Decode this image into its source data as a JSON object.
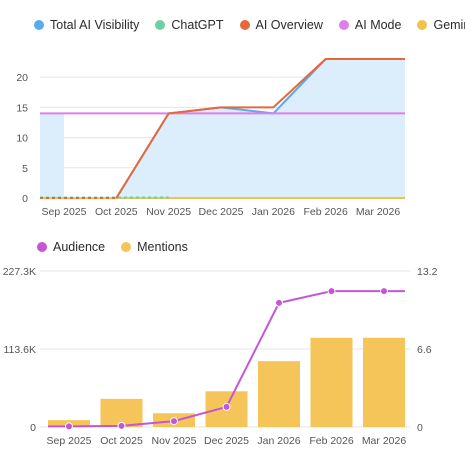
{
  "chart_data": [
    {
      "type": "line",
      "categories": [
        "Sep 2025",
        "Oct 2025",
        "Nov 2025",
        "Dec 2025",
        "Jan 2026",
        "Feb 2026",
        "Mar 2026"
      ],
      "ylim": [
        0,
        23
      ],
      "y_ticks": [
        "0",
        "5",
        "10",
        "15",
        "20"
      ],
      "legend_position": "top",
      "grid": true,
      "series": [
        {
          "name": "Total AI Visibility",
          "color": "#5aaaf0",
          "values": [
            0,
            0,
            14,
            15,
            14,
            23,
            23
          ],
          "area": true
        },
        {
          "name": "ChatGPT",
          "color": "#6fd0a8",
          "values": [
            0,
            0,
            0,
            0,
            0,
            0,
            0
          ]
        },
        {
          "name": "AI Overview",
          "color": "#e8673a",
          "values": [
            0,
            0,
            14,
            15,
            15,
            23,
            23
          ]
        },
        {
          "name": "AI Mode",
          "color": "#e07ee8",
          "values": [
            14,
            14,
            14,
            14,
            14,
            14,
            14
          ]
        },
        {
          "name": "Gemini",
          "color": "#f0c24a",
          "values": [
            0,
            0,
            0,
            0,
            0,
            0,
            0
          ]
        }
      ]
    },
    {
      "type": "bar",
      "categories": [
        "Sep 2025",
        "Oct 2025",
        "Nov 2025",
        "Dec 2025",
        "Jan 2026",
        "Feb 2026",
        "Mar 2026"
      ],
      "ylim_left": [
        0,
        227300
      ],
      "ylim_right": [
        0,
        13.2
      ],
      "y_ticks_left": [
        "0",
        "113.6K",
        "227.3K"
      ],
      "y_ticks_right": [
        "0",
        "6.6",
        "13.2"
      ],
      "legend_position": "top",
      "grid": true,
      "series": [
        {
          "name": "Audience",
          "color": "#c655d6",
          "type": "line",
          "axis": "right",
          "values": [
            0.05,
            0.1,
            0.5,
            1.7,
            10.5,
            11.5,
            11.5
          ]
        },
        {
          "name": "Mentions",
          "color": "#f5c55a",
          "type": "bar",
          "axis": "left",
          "values": [
            10000,
            41000,
            20000,
            52000,
            96000,
            130000,
            130000
          ]
        }
      ]
    }
  ]
}
